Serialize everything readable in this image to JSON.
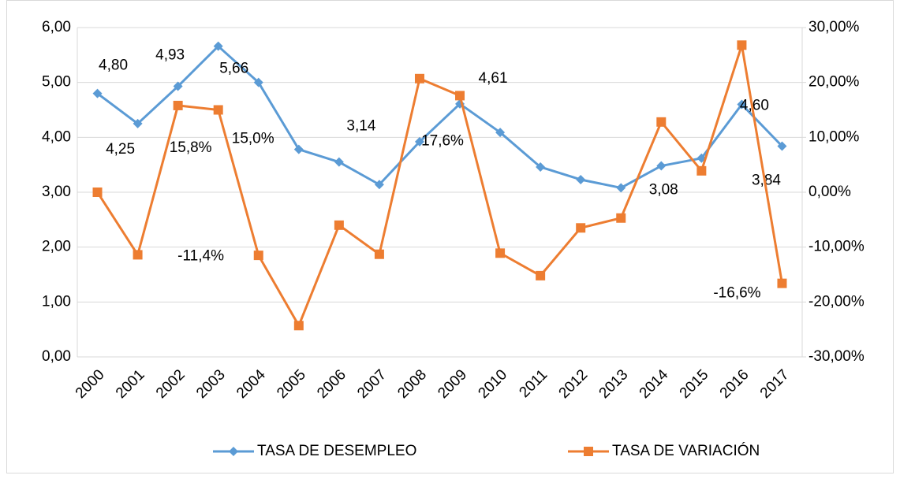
{
  "chart_data": {
    "type": "line",
    "categories": [
      "2000",
      "2001",
      "2002",
      "2003",
      "2004",
      "2005",
      "2006",
      "2007",
      "2008",
      "2009",
      "2010",
      "2011",
      "2012",
      "2013",
      "2014",
      "2015",
      "2016",
      "2017"
    ],
    "series": [
      {
        "name": "TASA DE DESEMPLEO",
        "color": "#5b9bd5",
        "marker": "diamond",
        "values": [
          4.8,
          4.25,
          4.93,
          5.66,
          5.0,
          3.78,
          3.55,
          3.14,
          3.92,
          4.61,
          4.09,
          3.46,
          3.23,
          3.08,
          3.48,
          3.62,
          4.6,
          3.84
        ],
        "value_labels": [
          "4,80",
          "4,25",
          "4,93",
          "5,66",
          null,
          null,
          null,
          "3,14",
          null,
          "4,61",
          null,
          null,
          null,
          "3,08",
          null,
          null,
          "4,60",
          "3,84"
        ]
      },
      {
        "name": "TASA DE VARIACIÓN",
        "color": "#ed7d31",
        "marker": "square",
        "axis": "y2",
        "values": [
          0,
          -11.4,
          15.8,
          15.0,
          -11.5,
          -24.3,
          -6.0,
          -11.3,
          20.7,
          17.6,
          -11.1,
          -15.2,
          -6.5,
          -4.7,
          12.8,
          3.9,
          26.8,
          -16.6
        ],
        "value_labels": [
          null,
          "-11,4%",
          "15,8%",
          "15,0%",
          null,
          null,
          null,
          null,
          null,
          "17,6%",
          null,
          null,
          null,
          null,
          null,
          null,
          null,
          "-16,6%"
        ]
      }
    ],
    "ylim": [
      0,
      6
    ],
    "yticks": [
      {
        "value": 0,
        "label": "0,00"
      },
      {
        "value": 1,
        "label": "1,00"
      },
      {
        "value": 2,
        "label": "2,00"
      },
      {
        "value": 3,
        "label": "3,00"
      },
      {
        "value": 4,
        "label": "4,00"
      },
      {
        "value": 5,
        "label": "5,00"
      },
      {
        "value": 6,
        "label": "6,00"
      }
    ],
    "y2lim": [
      -30,
      30
    ],
    "y2ticks": [
      {
        "value": -30,
        "label": "-30,00%"
      },
      {
        "value": -20,
        "label": "-20,00%"
      },
      {
        "value": -10,
        "label": "-10,00%"
      },
      {
        "value": 0,
        "label": "0,00%"
      },
      {
        "value": 10,
        "label": "10,00%"
      },
      {
        "value": 20,
        "label": "20,00%"
      },
      {
        "value": 30,
        "label": "30,00%"
      }
    ],
    "grid": true,
    "legend": "bottom"
  }
}
